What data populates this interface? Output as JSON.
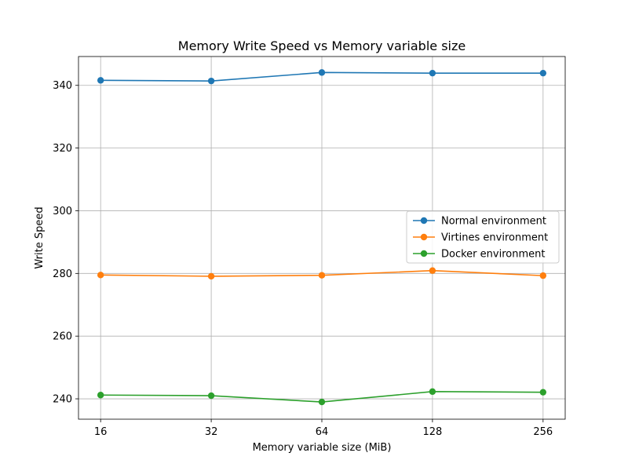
{
  "chart_data": {
    "type": "line",
    "title": "Memory Write Speed vs Memory variable size",
    "xlabel": "Memory variable size (MiB)",
    "ylabel": "Write Speed",
    "categories": [
      "16",
      "32",
      "64",
      "128",
      "256"
    ],
    "x_scale": "log2",
    "x": [
      16,
      32,
      64,
      128,
      256
    ],
    "ylim": [
      233.5,
      349.2
    ],
    "yticks": [
      240,
      260,
      280,
      300,
      320,
      340
    ],
    "grid": true,
    "legend_position": "center-right",
    "series": [
      {
        "name": "Normal environment",
        "color": "#1f77b4",
        "values": [
          341.6,
          341.4,
          344.1,
          343.9,
          343.9
        ]
      },
      {
        "name": "Virtines environment",
        "color": "#ff7f0e",
        "values": [
          279.5,
          279.1,
          279.4,
          280.9,
          279.3
        ]
      },
      {
        "name": "Docker environment",
        "color": "#2ca02c",
        "values": [
          241.2,
          241.0,
          239.0,
          242.3,
          242.1
        ]
      }
    ]
  }
}
